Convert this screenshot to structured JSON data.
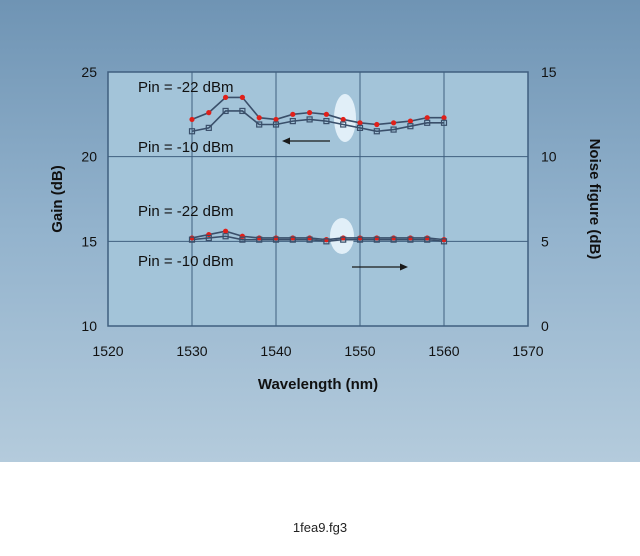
{
  "caption": "1fea9.fg3",
  "colors": {
    "panel": "#8fb0cb",
    "plot_area": "#a3c4d9",
    "grid": "#3f5f7f",
    "series_22": "#e0201a",
    "series_10": "#3a4f6a",
    "highlight": "#e8f4fb"
  },
  "chart_data": {
    "type": "line",
    "title": "",
    "xlabel": "Wavelength (nm)",
    "ylabel": "Gain (dB)",
    "y2label": "Noise figure (dB)",
    "xlim": [
      1520,
      1570
    ],
    "ylim": [
      10,
      25
    ],
    "y2lim": [
      0,
      15
    ],
    "xticks": [
      1520,
      1530,
      1540,
      1550,
      1560,
      1570
    ],
    "yticks": [
      10,
      15,
      20,
      25
    ],
    "y2ticks": [
      0,
      5,
      10,
      15
    ],
    "grid": true,
    "x": [
      1530,
      1532,
      1534,
      1536,
      1538,
      1540,
      1542,
      1544,
      1546,
      1548,
      1550,
      1552,
      1554,
      1556,
      1558,
      1560
    ],
    "series": [
      {
        "name": "Pin = -22 dBm",
        "axis": "gain",
        "marker": "circle",
        "values": [
          22.2,
          22.6,
          23.5,
          23.5,
          22.3,
          22.2,
          22.5,
          22.6,
          22.5,
          22.2,
          22.0,
          21.9,
          22.0,
          22.1,
          22.3,
          22.3
        ]
      },
      {
        "name": "Pin = -10 dBm",
        "axis": "gain",
        "marker": "square",
        "values": [
          21.5,
          21.7,
          22.7,
          22.7,
          21.9,
          21.9,
          22.1,
          22.2,
          22.1,
          21.9,
          21.7,
          21.5,
          21.6,
          21.8,
          22.0,
          22.0
        ]
      },
      {
        "name": "Pin = -22 dBm",
        "axis": "noise",
        "marker": "circle",
        "values": [
          5.2,
          5.4,
          5.6,
          5.3,
          5.2,
          5.2,
          5.2,
          5.2,
          5.1,
          5.2,
          5.2,
          5.2,
          5.2,
          5.2,
          5.2,
          5.1
        ]
      },
      {
        "name": "Pin = -10 dBm",
        "axis": "noise",
        "marker": "square",
        "values": [
          5.1,
          5.2,
          5.3,
          5.1,
          5.1,
          5.1,
          5.1,
          5.1,
          5.0,
          5.1,
          5.1,
          5.1,
          5.1,
          5.1,
          5.1,
          5.0
        ]
      }
    ],
    "annotations": {
      "gain_top": "Pin = -22 dBm",
      "gain_bottom": "Pin = -10 dBm",
      "noise_top": "Pin = -22 dBm",
      "noise_bottom": "Pin = -10 dBm"
    }
  }
}
